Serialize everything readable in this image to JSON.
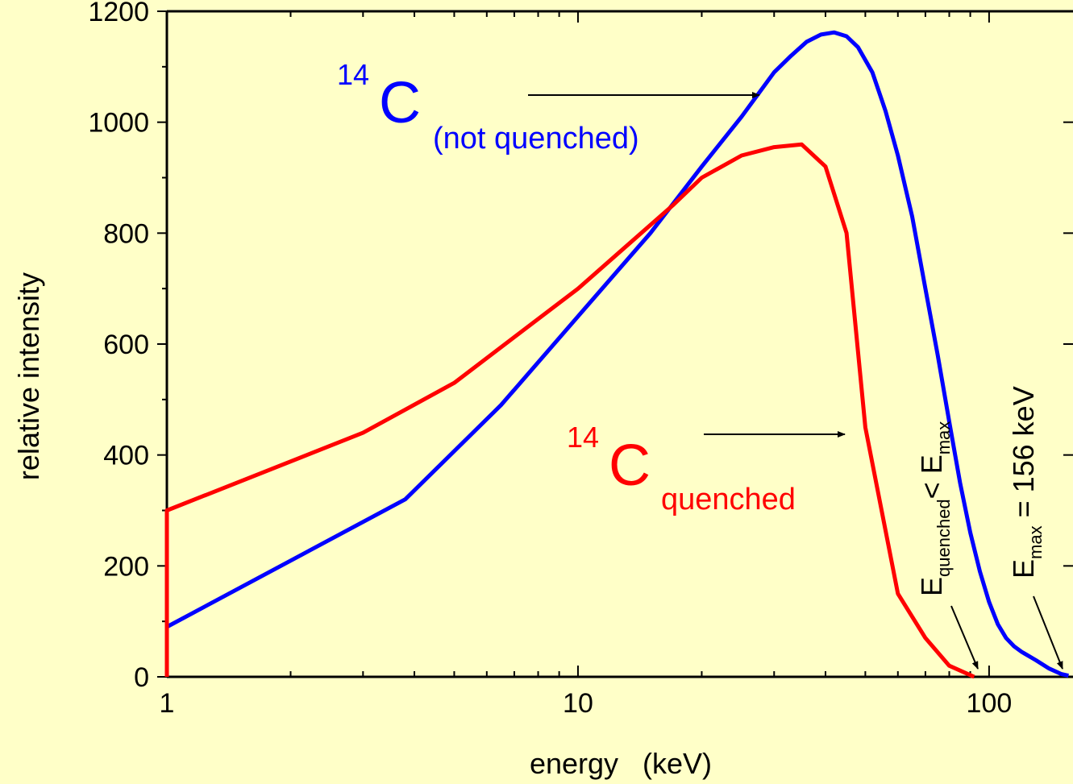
{
  "chart_data": {
    "type": "line",
    "xlabel": "energy   (keV)",
    "ylabel": "relative intensity",
    "x_scale": "log",
    "xlim": [
      1,
      160
    ],
    "ylim": [
      0,
      1200
    ],
    "x_ticks": [
      1,
      10,
      100
    ],
    "x_tick_labels": [
      "1",
      "10",
      "100"
    ],
    "y_ticks": [
      0,
      200,
      400,
      600,
      800,
      1000,
      1200
    ],
    "y_tick_labels": [
      "0",
      "200",
      "400",
      "600",
      "800",
      "1000",
      "1200"
    ],
    "grid": false,
    "background": "#FFFFC8",
    "series": [
      {
        "color": "#0000FF",
        "x": [
          1,
          3.8,
          6.5,
          10,
          15,
          20,
          25,
          30,
          33,
          36,
          39,
          42,
          45,
          48,
          52,
          56,
          60,
          65,
          70,
          75,
          80,
          85,
          90,
          95,
          100,
          105,
          110,
          115,
          120,
          130,
          140,
          150,
          156
        ],
        "y": [
          90,
          320,
          490,
          650,
          800,
          920,
          1010,
          1090,
          1120,
          1145,
          1158,
          1162,
          1155,
          1135,
          1090,
          1020,
          940,
          830,
          700,
          580,
          460,
          350,
          260,
          190,
          135,
          95,
          70,
          55,
          45,
          30,
          15,
          5,
          2
        ]
      },
      {
        "color": "#FF0000",
        "x": [
          1,
          1,
          3,
          5,
          10,
          17,
          20,
          25,
          30,
          35,
          40,
          45,
          50,
          60,
          70,
          80,
          92
        ],
        "y": [
          0,
          300,
          440,
          530,
          700,
          850,
          900,
          940,
          955,
          960,
          920,
          800,
          450,
          150,
          70,
          20,
          0
        ]
      }
    ],
    "annotations": {
      "blue_label": {
        "sup": "14",
        "main": "C",
        "sub": "(not quenched)",
        "color": "#0000FF"
      },
      "red_label": {
        "sup": "14",
        "main": "C",
        "sub": "quenched",
        "color": "#FF0000"
      },
      "emax_quenched": {
        "main": "E",
        "sub1": "quenched",
        "mid": "< E",
        "sub2": "max"
      },
      "emax": {
        "main": "E",
        "sub1": "max",
        "mid": " = 156 keV"
      }
    }
  }
}
